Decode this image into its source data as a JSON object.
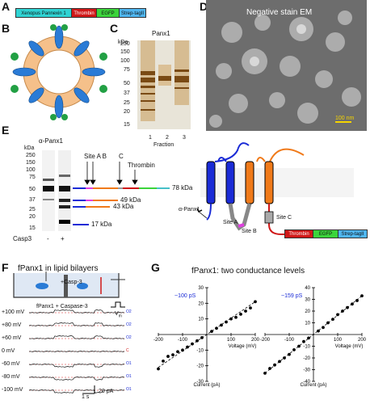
{
  "colors": {
    "blue": "#1a2bd6",
    "orange": "#f07a1a",
    "red": "#d01818",
    "green": "#3bd43b",
    "cyan": "#4fb6f0",
    "magenta": "#e040e0",
    "teal": "#46c0c8",
    "gel": "#8a5a1e"
  },
  "panels": {
    "a": "A",
    "b": "B",
    "c": "C",
    "d": "D",
    "e": "E",
    "f": "F",
    "g": "G"
  },
  "construct": {
    "pannexin": "Xenopus Pannexin 1",
    "thrombin": "Thrombin",
    "egfp": "EGFP",
    "strep": "Strep-tagII"
  },
  "gel": {
    "title": "Panx1",
    "kda": "kDa",
    "markers": [
      "250",
      "150",
      "100",
      "75",
      "50",
      "37",
      "25",
      "20",
      "15"
    ],
    "lanes": [
      "1",
      "2",
      "3"
    ],
    "xlabel": "Fraction"
  },
  "em": {
    "title": "Negative stain EM",
    "scale": "100 nm"
  },
  "western": {
    "title": "α-Panx1",
    "kda": "kDa",
    "markers": [
      "250",
      "150",
      "100",
      "75",
      "50",
      "37",
      "25",
      "20",
      "15"
    ],
    "casp3": "Casp3",
    "minus": "-",
    "plus": "+",
    "site_ab": "Site A B",
    "site_c": "C",
    "thrombin": "Thrombin",
    "bands": [
      "78 kDa",
      "49 kDa",
      "43 kDa",
      "17 kDa"
    ]
  },
  "topology": {
    "antibody": "α-Panx1",
    "site_a": "Site A",
    "site_b": "Site B",
    "site_c": "Site C",
    "thrombin": "Thrombin",
    "egfp": "EGFP",
    "strep": "Strep-tagII"
  },
  "bilayer": {
    "title": "fPanx1 in lipid bilayers",
    "casp": "+Casp-3",
    "vm": "V",
    "vm_sub": "m",
    "subtitle": "fPanx1 + Caspase-3",
    "voltages": [
      "+100 mV",
      "+80 mV",
      "+60 mV",
      "0 mV",
      "-60 mV",
      "-80 mV",
      "-100 mV"
    ],
    "scale_time": "1 s",
    "scale_current": "20 pA",
    "levels": [
      "O2",
      "O1",
      "C",
      "O1",
      "O2"
    ]
  },
  "iv": {
    "title": "fPanx1: two conductance levels",
    "left_label": "~100 pS",
    "right_label": "~159 pS",
    "xlabel": "Voltage (mV)",
    "ylabel": "Current (pA)",
    "left_yticks": [
      "30",
      "20",
      "10",
      "-10",
      "-20",
      "-30"
    ],
    "right_yticks": [
      "40",
      "30",
      "20",
      "10",
      "-10",
      "-20",
      "-30",
      "-40"
    ],
    "xticks": [
      "-200",
      "-100",
      "100",
      "200"
    ]
  },
  "chart_data": [
    {
      "type": "scatter",
      "title": "~100 pS",
      "xlabel": "Voltage (mV)",
      "ylabel": "Current (pA)",
      "xlim": [
        -200,
        200
      ],
      "ylim": [
        -30,
        30
      ],
      "x": [
        -200,
        -180,
        -160,
        -140,
        -120,
        -100,
        -80,
        -60,
        -40,
        -20,
        20,
        40,
        60,
        80,
        100,
        120,
        140,
        160,
        180,
        200
      ],
      "y": [
        -22,
        -17,
        -14,
        -13,
        -11,
        -10,
        -8,
        -6,
        -4,
        -2,
        2,
        4,
        6,
        8,
        10,
        11,
        13,
        15,
        17,
        21
      ]
    },
    {
      "type": "scatter",
      "title": "~159 pS",
      "xlabel": "Voltage (mV)",
      "ylabel": "Current (pA)",
      "xlim": [
        -200,
        200
      ],
      "ylim": [
        -40,
        40
      ],
      "x": [
        -200,
        -180,
        -160,
        -140,
        -120,
        -100,
        -80,
        -60,
        -40,
        -20,
        20,
        40,
        60,
        80,
        100,
        120,
        140,
        160,
        180,
        200
      ],
      "y": [
        -33,
        -29,
        -26,
        -23,
        -20,
        -17,
        -13,
        -10,
        -6,
        -3,
        3,
        6,
        10,
        13,
        17,
        20,
        23,
        26,
        29,
        33
      ]
    }
  ]
}
